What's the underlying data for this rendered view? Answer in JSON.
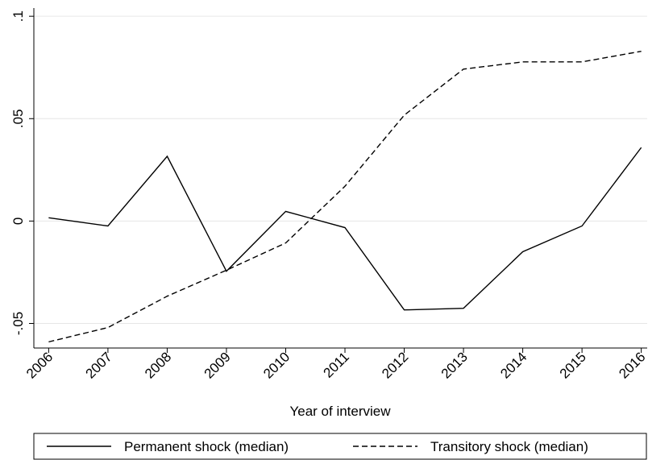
{
  "chart_data": {
    "type": "line",
    "x": [
      2006,
      2007,
      2008,
      2009,
      2010,
      2011,
      2012,
      2013,
      2014,
      2015,
      2016
    ],
    "x_label": "Year of interview",
    "series": [
      {
        "name": "Permanent shock (median)",
        "color": "#000000",
        "dash": "solid",
        "values": [
          0.0016,
          -0.0024,
          0.0316,
          -0.0245,
          0.0047,
          -0.0032,
          -0.0434,
          -0.0426,
          -0.015,
          -0.0024,
          0.0359
        ]
      },
      {
        "name": "Transitory shock (median)",
        "color": "#000000",
        "dash": "dashed",
        "values": [
          -0.059,
          -0.052,
          -0.0367,
          -0.024,
          -0.0107,
          0.017,
          0.0517,
          0.0742,
          0.0777,
          0.0777,
          0.0829
        ]
      }
    ],
    "xlim": [
      2005.75,
      2016.1
    ],
    "xticks": [
      2006,
      2007,
      2008,
      2009,
      2010,
      2011,
      2012,
      2013,
      2014,
      2015,
      2016
    ],
    "ylim": [
      -0.062,
      0.104
    ],
    "yticks": [
      {
        "value": -0.05,
        "label": "-.05"
      },
      0,
      {
        "value": 0.05,
        "label": ".05"
      },
      {
        "value": 0.1,
        "label": ".1"
      }
    ],
    "grid": true,
    "legend": "bottom"
  }
}
